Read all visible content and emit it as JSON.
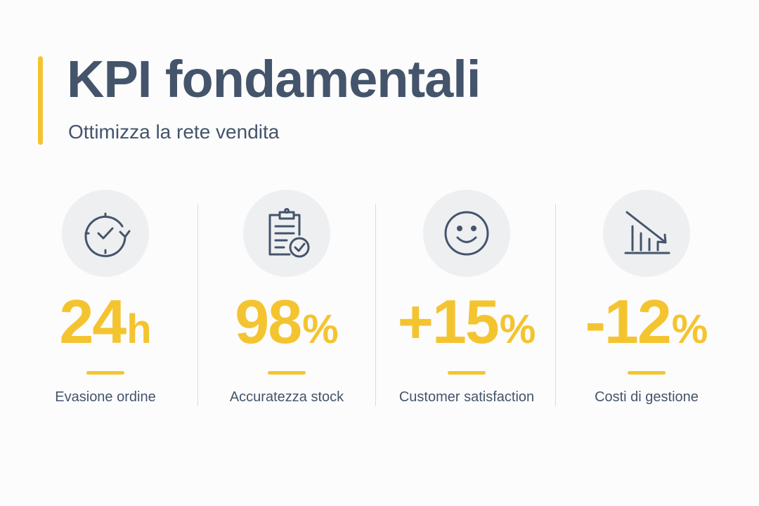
{
  "header": {
    "title": "KPI fondamentali",
    "subtitle": "Ottimizza la rete vendita"
  },
  "colors": {
    "accent": "#f4c430",
    "text": "#44546b",
    "icon_bg": "#eeeff1"
  },
  "kpis": [
    {
      "icon": "clock-refresh-icon",
      "number": "24",
      "unit": "h",
      "label": "Evasione ordine"
    },
    {
      "icon": "clipboard-check-icon",
      "number": "98",
      "unit": "%",
      "label": "Accuratezza stock"
    },
    {
      "icon": "smiley-face-icon",
      "number": "+15",
      "unit": "%",
      "label": "Customer satisfaction"
    },
    {
      "icon": "chart-down-icon",
      "number": "-12",
      "unit": "%",
      "label": "Costi di gestione"
    }
  ]
}
